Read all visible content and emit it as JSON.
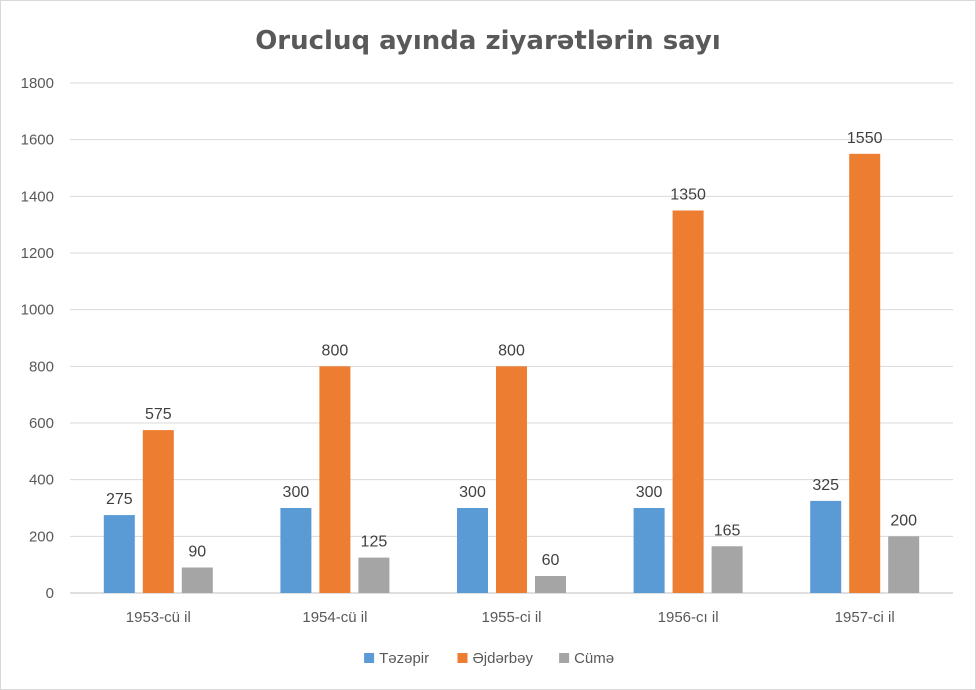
{
  "chart_data": {
    "type": "bar",
    "title": "Orucluq ayında ziyarətlərin sayı",
    "categories": [
      "1953-cü il",
      "1954-cü il",
      "1955-ci il",
      "1956-cı il",
      "1957-ci il"
    ],
    "series": [
      {
        "name": "Təzəpir",
        "color": "#5b9bd5",
        "values": [
          275,
          300,
          300,
          300,
          325
        ]
      },
      {
        "name": "Əjdərbəy",
        "color": "#ed7d31",
        "values": [
          575,
          800,
          800,
          1350,
          1550
        ]
      },
      {
        "name": "Cümə",
        "color": "#a5a5a5",
        "values": [
          90,
          125,
          60,
          165,
          200
        ]
      }
    ],
    "ylim": [
      0,
      1800
    ],
    "yticks": [
      0,
      200,
      400,
      600,
      800,
      1000,
      1200,
      1400,
      1600,
      1800
    ],
    "grid": true,
    "legend": "bottom",
    "data_labels": true
  }
}
